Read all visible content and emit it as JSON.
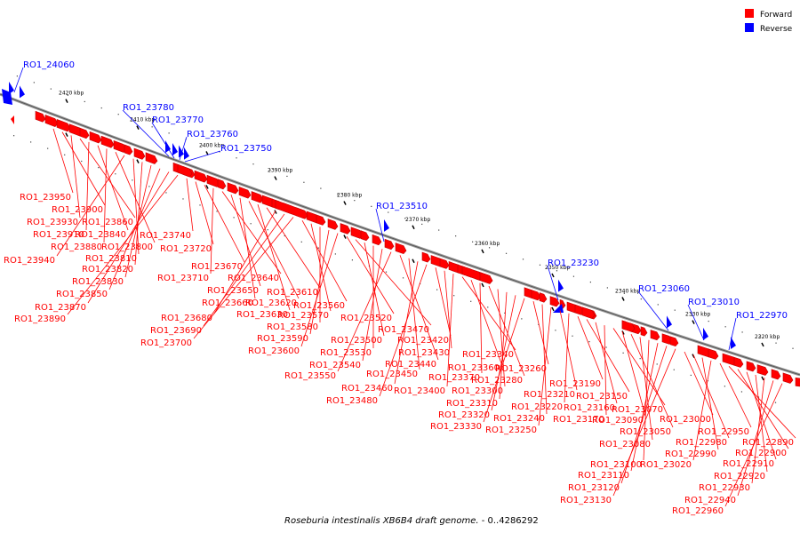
{
  "legend": [
    {
      "label": "Forward",
      "color": "#ff0000"
    },
    {
      "label": "Reverse",
      "color": "#0000ff"
    }
  ],
  "caption": {
    "organism": "Roseburia intestinalis XB6B4 draft genome.",
    "range": " - 0..4286292"
  },
  "colors": {
    "forward": "#ff0000",
    "reverse": "#0000ff",
    "axis": "#808080"
  },
  "ticks": [
    {
      "label": "2420 kbp",
      "pos": 2420
    },
    {
      "label": "2410 kbp",
      "pos": 2410
    },
    {
      "label": "2400 kbp",
      "pos": 2400
    },
    {
      "label": "2390 kbp",
      "pos": 2390
    },
    {
      "label": "2380 kbp",
      "pos": 2380
    },
    {
      "label": "2370 kbp",
      "pos": 2370
    },
    {
      "label": "2360 kbp",
      "pos": 2360
    },
    {
      "label": "2350 kbp",
      "pos": 2350
    },
    {
      "label": "2340 kbp",
      "pos": 2340
    },
    {
      "label": "2330 kbp",
      "pos": 2330
    },
    {
      "label": "2320 kbp",
      "pos": 2320
    }
  ],
  "reverse_genes": [
    "RO1_24060",
    "RO1_23780",
    "RO1_23770",
    "RO1_23760",
    "RO1_23750",
    "RO1_23510",
    "RO1_23230",
    "RO1_23060",
    "RO1_23010",
    "RO1_22970"
  ],
  "forward_genes": [
    "RO1_23950",
    "RO1_23900",
    "RO1_23930",
    "RO1_23860",
    "RO1_23910",
    "RO1_23840",
    "RO1_23880",
    "RO1_23800",
    "RO1_23940",
    "RO1_23810",
    "RO1_23820",
    "RO1_23830",
    "RO1_23850",
    "RO1_23870",
    "RO1_23890",
    "RO1_23740",
    "RO1_23720",
    "RO1_23670",
    "RO1_23710",
    "RO1_23640",
    "RO1_23650",
    "RO1_23660",
    "RO1_23620",
    "RO1_23630",
    "RO1_23610",
    "RO1_23680",
    "RO1_23690",
    "RO1_23700",
    "RO1_23560",
    "RO1_23570",
    "RO1_23580",
    "RO1_23590",
    "RO1_23600",
    "RO1_23520",
    "RO1_23470",
    "RO1_23500",
    "RO1_23530",
    "RO1_23540",
    "RO1_23550",
    "RO1_23440",
    "RO1_23450",
    "RO1_23460",
    "RO1_23480",
    "RO1_23420",
    "RO1_23430",
    "RO1_23400",
    "RO1_23340",
    "RO1_23360",
    "RO1_23370",
    "RO1_23280",
    "RO1_23300",
    "RO1_23310",
    "RO1_23320",
    "RO1_23330",
    "RO1_23260",
    "RO1_23240",
    "RO1_23250",
    "RO1_23210",
    "RO1_23220",
    "RO1_23190",
    "RO1_23150",
    "RO1_23160",
    "RO1_23170",
    "RO1_23070",
    "RO1_23090",
    "RO1_23050",
    "RO1_23080",
    "RO1_23100",
    "RO1_23110",
    "RO1_23120",
    "RO1_23130",
    "RO1_23000",
    "RO1_22980",
    "RO1_22990",
    "RO1_23020",
    "RO1_22950",
    "RO1_22890",
    "RO1_22900",
    "RO1_22910",
    "RO1_22920",
    "RO1_22930",
    "RO1_22940",
    "RO1_22960"
  ]
}
